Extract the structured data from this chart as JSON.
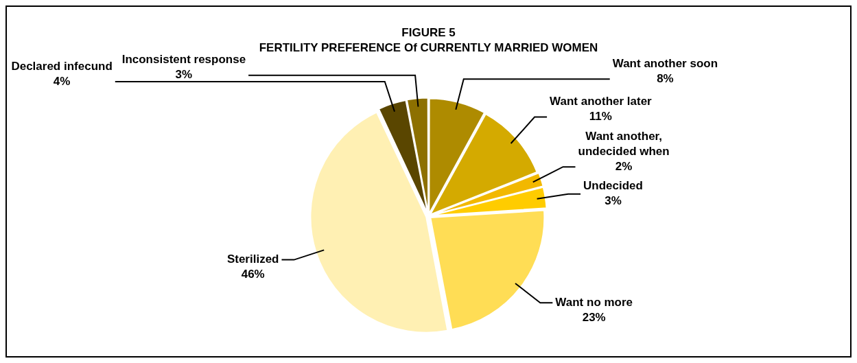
{
  "chart_data": {
    "type": "pie",
    "title": "FIGURE 5",
    "subtitle": "FERTILITY PREFERENCE Of CURRENTLY MARRIED WOMEN",
    "categories": [
      "Want another soon",
      "Want another later",
      "Want another, undecided when",
      "Undecided",
      "Want no more",
      "Sterilized",
      "Declared infecund",
      "Inconsistent response"
    ],
    "values": [
      8,
      11,
      2,
      3,
      23,
      46,
      4,
      3
    ],
    "value_labels": [
      "8%",
      "11%",
      "2%",
      "3%",
      "23%",
      "46%",
      "4%",
      "3%"
    ],
    "colors": [
      "#ae8b00",
      "#d4aa00",
      "#f2b800",
      "#ffcc00",
      "#ffdd55",
      "#fff0b3",
      "#5a4600",
      "#8d7000"
    ],
    "legend": false
  }
}
